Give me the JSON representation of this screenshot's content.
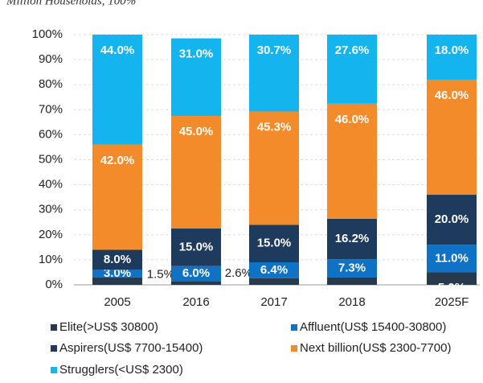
{
  "chart_data": {
    "type": "stacked_bar",
    "subtitle": "Million Households, 100%",
    "categories": [
      "2005",
      "2016",
      "2017",
      "2018",
      "2025F"
    ],
    "series": [
      {
        "name": "Elite(>US$ 30800)",
        "color": "#27394d",
        "values": [
          3.0,
          1.5,
          2.6,
          2.9,
          5.0
        ],
        "value_labels": [
          null,
          "1.5%",
          "2.6%",
          null,
          "5.0%"
        ]
      },
      {
        "name": "Affluent(US$ 15400-30800)",
        "color": "#0f72c4",
        "values": [
          3.0,
          6.0,
          6.4,
          7.3,
          11.0
        ],
        "value_labels": [
          "3.0%",
          "6.0%",
          "6.4%",
          "7.3%",
          "11.0%"
        ]
      },
      {
        "name": "Aspirers(US$ 7700-15400)",
        "color": "#1e3a5c",
        "values": [
          8.0,
          15.0,
          15.0,
          16.2,
          20.0
        ],
        "value_labels": [
          "8.0%",
          "15.0%",
          "15.0%",
          "16.2%",
          "20.0%"
        ]
      },
      {
        "name": "Next billion(US$ 2300-7700)",
        "color": "#f38b2a",
        "values": [
          42.0,
          45.0,
          45.3,
          46.0,
          46.0
        ],
        "value_labels": [
          "42.0%",
          "45.0%",
          "45.3%",
          "46.0%",
          "46.0%"
        ]
      },
      {
        "name": "Strugglers(<US$ 2300)",
        "color": "#14b4ee",
        "values": [
          44.0,
          31.0,
          30.7,
          27.6,
          18.0
        ],
        "value_labels": [
          "44.0%",
          "31.0%",
          "30.7%",
          "27.6%",
          "18.0%"
        ]
      }
    ],
    "ylim": [
      0,
      100
    ],
    "yticks": [
      {
        "value": 0,
        "label": "0%"
      },
      {
        "value": 10,
        "label": "10%"
      },
      {
        "value": 20,
        "label": "20%"
      },
      {
        "value": 30,
        "label": "30%"
      },
      {
        "value": 40,
        "label": "40%"
      },
      {
        "value": 50,
        "label": "50%"
      },
      {
        "value": 60,
        "label": "60%"
      },
      {
        "value": 70,
        "label": "70%"
      },
      {
        "value": 80,
        "label": "80%"
      },
      {
        "value": 90,
        "label": "90%"
      },
      {
        "value": 100,
        "label": "100%"
      }
    ],
    "grid": true
  }
}
